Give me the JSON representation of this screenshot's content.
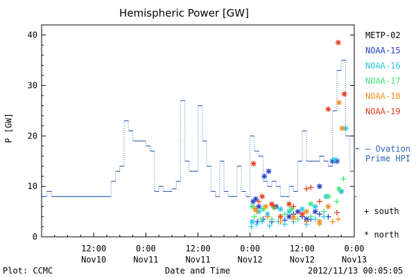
{
  "chart_data": {
    "type": "line",
    "title": "Hemispheric Power [GW]",
    "xlabel": "Date and Time",
    "ylabel": "P [GW]",
    "ylim": [
      0,
      42
    ],
    "yticks": [
      0,
      10,
      20,
      30,
      40
    ],
    "xlim_hours": [
      0,
      72
    ],
    "xticks": [
      {
        "hour": 12,
        "time": "12:00",
        "date": "Nov10"
      },
      {
        "hour": 24,
        "time": "0:00",
        "date": "Nov11"
      },
      {
        "hour": 36,
        "time": "12:00",
        "date": "Nov11"
      },
      {
        "hour": 48,
        "time": "0:00",
        "date": "Nov12"
      },
      {
        "hour": 60,
        "time": "12:00",
        "date": "Nov12"
      },
      {
        "hour": 72,
        "time": "0:00",
        "date": "Nov13"
      }
    ],
    "ovation": {
      "name": "Ovation Prime HPI",
      "color": "#2f64b8",
      "steps": [
        [
          0,
          8
        ],
        [
          1.2,
          9
        ],
        [
          2.3,
          8
        ],
        [
          16,
          11
        ],
        [
          17,
          13
        ],
        [
          18,
          14
        ],
        [
          19,
          23
        ],
        [
          20,
          21
        ],
        [
          21,
          19
        ],
        [
          24,
          18
        ],
        [
          25,
          17
        ],
        [
          26,
          9
        ],
        [
          27,
          10
        ],
        [
          28,
          9
        ],
        [
          30,
          9.5
        ],
        [
          31,
          11
        ],
        [
          32,
          27
        ],
        [
          33,
          15
        ],
        [
          34,
          13
        ],
        [
          35,
          13
        ],
        [
          36,
          26
        ],
        [
          37,
          19
        ],
        [
          38,
          14
        ],
        [
          39,
          9
        ],
        [
          40,
          8
        ],
        [
          41,
          15
        ],
        [
          42,
          9
        ],
        [
          43,
          8
        ],
        [
          44,
          8
        ],
        [
          45,
          14
        ],
        [
          46,
          9
        ],
        [
          47,
          8
        ],
        [
          48,
          20
        ],
        [
          49,
          17
        ],
        [
          50,
          16
        ],
        [
          51,
          11
        ],
        [
          52,
          10
        ],
        [
          53,
          11
        ],
        [
          54,
          10
        ],
        [
          55,
          8
        ],
        [
          56,
          8
        ],
        [
          57,
          10
        ],
        [
          58,
          9
        ],
        [
          59,
          15
        ],
        [
          60,
          21
        ],
        [
          61,
          15
        ],
        [
          62,
          15
        ],
        [
          64,
          16
        ],
        [
          65,
          15
        ],
        [
          66,
          14
        ],
        [
          67,
          25
        ],
        [
          68,
          33
        ],
        [
          69,
          35
        ],
        [
          70,
          20
        ],
        [
          71,
          13
        ],
        [
          72,
          8
        ],
        [
          72.5,
          8
        ]
      ]
    },
    "series": [
      {
        "name": "METP-02",
        "color": "#000000",
        "south": [],
        "north": []
      },
      {
        "name": "NOAA-15",
        "color": "#2440c8",
        "south": [
          [
            49.7,
            3
          ],
          [
            51,
            3.5
          ],
          [
            52,
            4
          ],
          [
            53,
            3
          ],
          [
            56,
            3.3
          ],
          [
            58,
            4.5
          ],
          [
            60,
            4
          ],
          [
            62,
            3.5
          ],
          [
            64,
            4.5
          ],
          [
            66,
            4
          ]
        ],
        "north": [
          [
            48.7,
            7
          ],
          [
            49.3,
            7.5
          ],
          [
            50,
            6
          ],
          [
            51.3,
            12
          ],
          [
            52.3,
            13
          ],
          [
            54,
            6
          ],
          [
            55,
            4
          ],
          [
            57,
            4
          ],
          [
            59,
            5
          ],
          [
            61,
            3.5
          ],
          [
            63,
            5
          ],
          [
            64,
            10
          ],
          [
            67,
            15
          ],
          [
            68,
            15
          ],
          [
            69,
            9
          ]
        ]
      },
      {
        "name": "NOAA-16",
        "color": "#28c8e6",
        "south": [
          [
            48.3,
            2
          ],
          [
            49.5,
            2.5
          ],
          [
            50.8,
            3
          ],
          [
            52.5,
            2.2
          ],
          [
            54.5,
            3
          ],
          [
            56,
            2.5
          ],
          [
            58,
            3
          ],
          [
            61,
            2.5
          ],
          [
            63,
            3.5
          ],
          [
            65,
            4
          ],
          [
            66,
            6
          ]
        ],
        "north": [
          [
            48.5,
            3
          ],
          [
            50,
            5
          ],
          [
            52,
            4.5
          ],
          [
            55,
            5.5
          ],
          [
            57,
            5
          ],
          [
            60,
            5.5
          ],
          [
            63,
            6
          ],
          [
            65.5,
            8
          ],
          [
            67.5,
            15.3
          ],
          [
            70,
            21.5
          ],
          [
            69,
            9
          ]
        ]
      },
      {
        "name": "NOAA-17",
        "color": "#3ce87a",
        "south": [
          [
            49,
            4
          ],
          [
            50.5,
            3.5
          ],
          [
            53,
            3.5
          ],
          [
            56,
            4.5
          ],
          [
            59,
            3.5
          ],
          [
            62,
            4
          ],
          [
            65,
            5
          ],
          [
            68,
            7
          ],
          [
            69.5,
            11.5
          ]
        ],
        "north": [
          [
            48.6,
            6
          ],
          [
            51,
            5.5
          ],
          [
            53.5,
            5.8
          ],
          [
            57.5,
            5.5
          ],
          [
            62,
            6.5
          ],
          [
            66,
            8
          ],
          [
            68.5,
            9.5
          ]
        ]
      },
      {
        "name": "NOAA-18",
        "color": "#f0901c",
        "south": [
          [
            49.5,
            5
          ],
          [
            52,
            4
          ],
          [
            55,
            3
          ],
          [
            58,
            3.5
          ],
          [
            61,
            3
          ],
          [
            64,
            2.5
          ],
          [
            67,
            3
          ],
          [
            68.3,
            3.5
          ]
        ],
        "north": [
          [
            49.2,
            5.5
          ],
          [
            51.6,
            6
          ],
          [
            55,
            4
          ],
          [
            58,
            4
          ],
          [
            61,
            5
          ],
          [
            64,
            3
          ],
          [
            66,
            6
          ],
          [
            68.5,
            26.6
          ],
          [
            69.2,
            21.5
          ]
        ]
      },
      {
        "name": "NOAA-19",
        "color": "#e63c1e",
        "south": [
          [
            50,
            7
          ],
          [
            53.5,
            6
          ],
          [
            55,
            4
          ],
          [
            58,
            6
          ],
          [
            61,
            9.5
          ],
          [
            62,
            9.8
          ],
          [
            64,
            7
          ],
          [
            68,
            4.8
          ]
        ],
        "north": [
          [
            48.8,
            14.5
          ],
          [
            50.8,
            8
          ],
          [
            53,
            6.5
          ],
          [
            57,
            6.5
          ],
          [
            60,
            4.5
          ],
          [
            66,
            25.3
          ],
          [
            68.3,
            38.5
          ],
          [
            69.7,
            28.3
          ]
        ]
      }
    ]
  },
  "legend": {
    "items": [
      "METP-02",
      "NOAA-15",
      "NOAA-16",
      "NOAA-17",
      "NOAA-18",
      "NOAA-19"
    ],
    "colors": [
      "#000000",
      "#2440c8",
      "#28c8e6",
      "#3ce87a",
      "#f0901c",
      "#e63c1e"
    ],
    "ovation_line1": "— Ovation",
    "ovation_line2": "Prime HPI",
    "south": "+ south",
    "north": "* north"
  },
  "footer": {
    "plot": "Plot: CCMC",
    "timestamp": "2012/11/13 00:05:05"
  }
}
